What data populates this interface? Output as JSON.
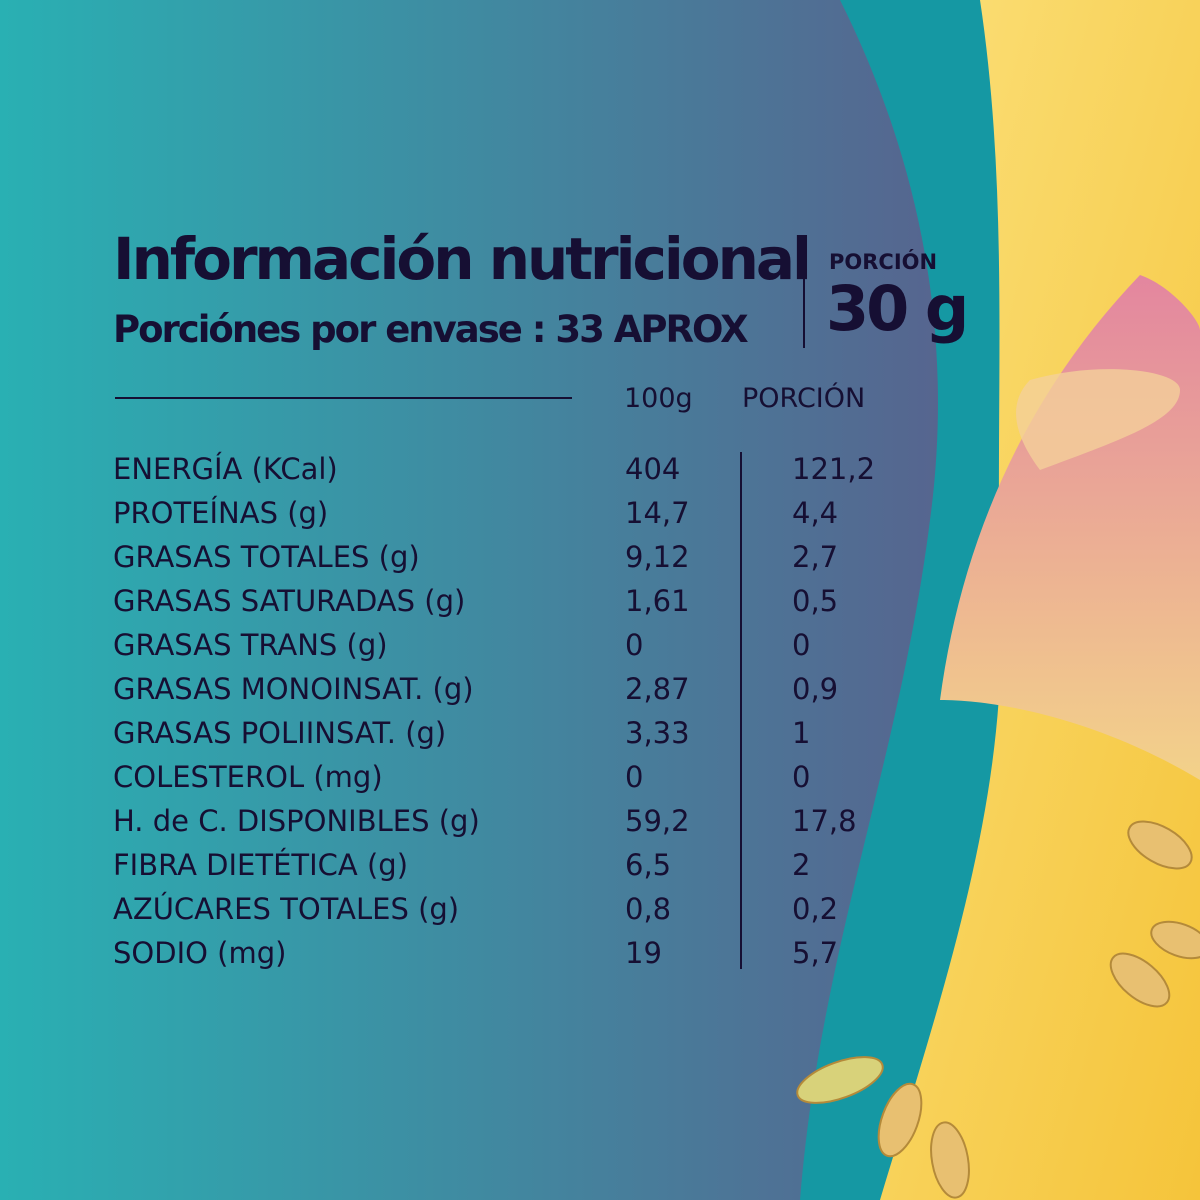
{
  "header": {
    "title": "Información nutricional",
    "servings_per_package": "Porciónes por envase :  33 APROX",
    "portion_label": "PORCIÓN",
    "portion_value": "30 g"
  },
  "table": {
    "columns": [
      "100g",
      "PORCIÓN"
    ],
    "rows": [
      {
        "label": "ENERGÍA (KCal)",
        "per100g": "404",
        "portion": "121,2"
      },
      {
        "label": "PROTEÍNAS (g)",
        "per100g": "14,7",
        "portion": "4,4"
      },
      {
        "label": "GRASAS TOTALES (g)",
        "per100g": "9,12",
        "portion": "2,7"
      },
      {
        "label": "GRASAS SATURADAS (g)",
        "per100g": "1,61",
        "portion": "0,5"
      },
      {
        "label": "GRASAS TRANS (g)",
        "per100g": "0",
        "portion": "0"
      },
      {
        "label": "GRASAS MONOINSAT. (g)",
        "per100g": "2,87",
        "portion": "0,9"
      },
      {
        "label": "GRASAS POLIINSAT. (g)",
        "per100g": "3,33",
        "portion": "1"
      },
      {
        "label": "COLESTEROL (mg)",
        "per100g": "0",
        "portion": "0"
      },
      {
        "label": "H. de C. DISPONIBLES (g)",
        "per100g": "59,2",
        "portion": "17,8"
      },
      {
        "label": "FIBRA DIETÉTICA (g)",
        "per100g": "6,5",
        "portion": "2"
      },
      {
        "label": "AZÚCARES TOTALES (g)",
        "per100g": "0,8",
        "portion": "0,2"
      },
      {
        "label": "SODIO (mg)",
        "per100g": "19",
        "portion": "5,7"
      }
    ]
  },
  "colors": {
    "text": "#160f33",
    "bg_left": "#29b0b3",
    "bg_right": "#55668f",
    "teal": "#0f95a0",
    "yellow": "#f7d55a",
    "pink": "#e08aa8"
  }
}
